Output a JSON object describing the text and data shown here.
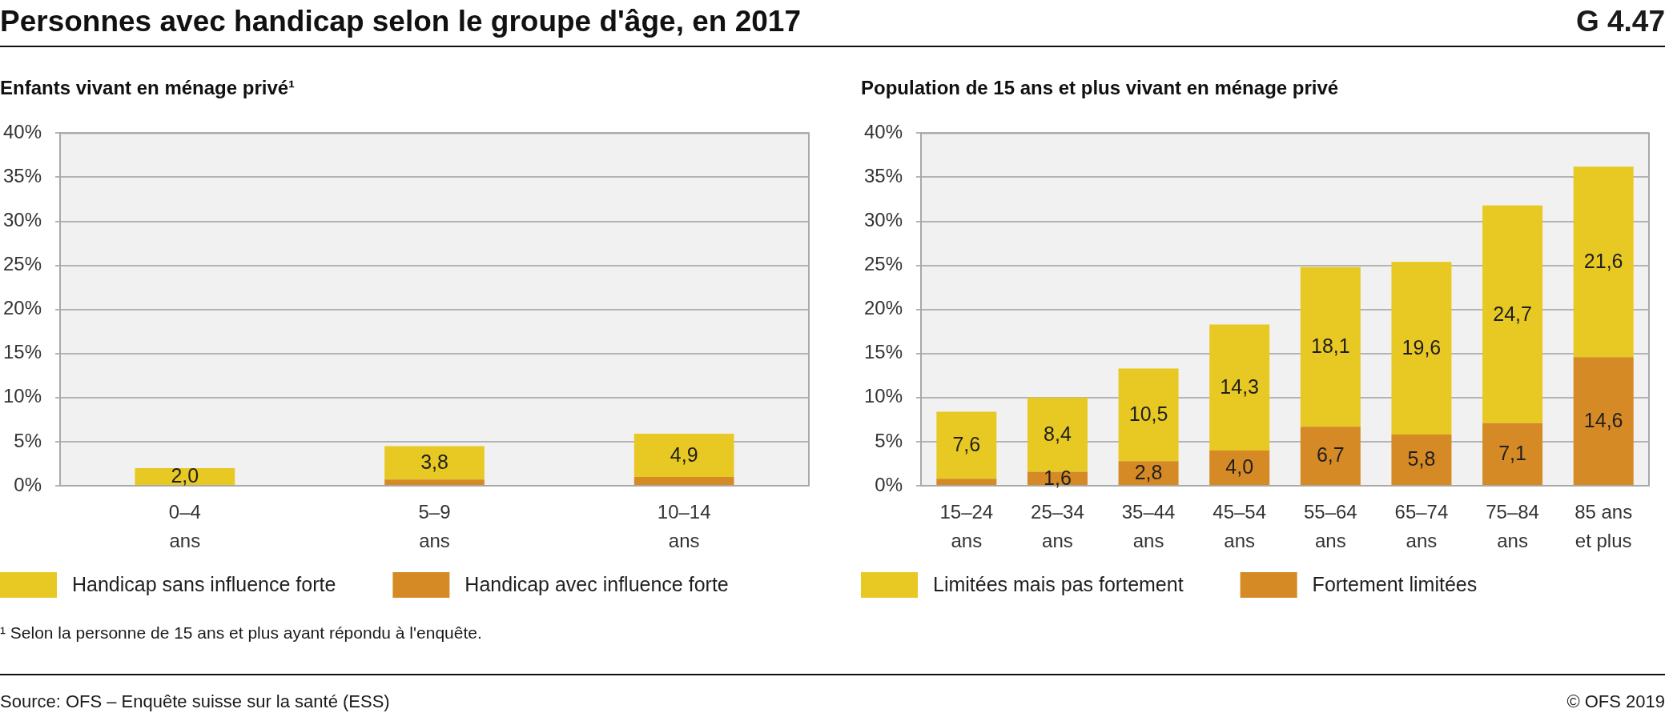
{
  "chart_data": [
    {
      "type": "bar",
      "title": "Personnes avec handicap selon le groupe d'âge, en 2017",
      "subtitle": "Enfants vivant en ménage privé¹",
      "categories": [
        "0–4 ans",
        "5–9 ans",
        "10–14 ans"
      ],
      "stacked": true,
      "series": [
        {
          "name": "Handicap avec influence forte",
          "color": "#d68a25",
          "values": [
            null,
            0.7,
            1.0
          ]
        },
        {
          "name": "Handicap sans influence forte",
          "color": "#e8c823",
          "values": [
            2.0,
            3.8,
            4.9
          ],
          "value_labels": [
            "2,0",
            "3,8",
            "4,9"
          ]
        }
      ],
      "ylim": [
        0,
        40
      ],
      "yticks": [
        {
          "value": 0,
          "label": "0%"
        },
        {
          "value": 5,
          "label": "5%"
        },
        {
          "value": 10,
          "label": "10%"
        },
        {
          "value": 15,
          "label": "15%"
        },
        {
          "value": 20,
          "label": "20%"
        },
        {
          "value": 25,
          "label": "25%"
        },
        {
          "value": 30,
          "label": "30%"
        },
        {
          "value": 35,
          "label": "35%"
        },
        {
          "value": 40,
          "label": "40%"
        }
      ],
      "grid": "y",
      "legend": "bottom left",
      "annotations": [
        "¹ Selon la personne de 15 ans et plus ayant répondu à l'enquête.",
        "Source: OFS – Enquête suisse sur la santé (ESS)"
      ]
    },
    {
      "type": "bar",
      "subtitle": "Population de 15 ans et plus vivant en ménage privé",
      "categories": [
        "15–24 ans",
        "25–34 ans",
        "35–44 ans",
        "45–54 ans",
        "55–64 ans",
        "65–74 ans",
        "75–84 ans",
        "85 ans et plus"
      ],
      "stacked": true,
      "series": [
        {
          "name": "Fortement limitées",
          "color": "#d68a25",
          "values": [
            0.8,
            1.6,
            2.8,
            4.0,
            6.7,
            5.8,
            7.1,
            14.6
          ],
          "value_labels": [
            null,
            "1,6",
            "2,8",
            "4,0",
            "6,7",
            "5,8",
            "7,1",
            "14,6"
          ]
        },
        {
          "name": "Limitées mais pas fortement",
          "color": "#e8c823",
          "values": [
            7.6,
            8.4,
            10.5,
            14.3,
            18.1,
            19.6,
            24.7,
            21.6
          ],
          "value_labels": [
            "7,6",
            "8,4",
            "10,5",
            "14,3",
            "18,1",
            "19,6",
            "24,7",
            "21,6"
          ]
        }
      ],
      "ylim": [
        0,
        40
      ],
      "yticks": [
        {
          "value": 0,
          "label": "0%"
        },
        {
          "value": 5,
          "label": "5%"
        },
        {
          "value": 10,
          "label": "10%"
        },
        {
          "value": 15,
          "label": "15%"
        },
        {
          "value": 20,
          "label": "20%"
        },
        {
          "value": 25,
          "label": "25%"
        },
        {
          "value": 30,
          "label": "30%"
        },
        {
          "value": 35,
          "label": "35%"
        },
        {
          "value": 40,
          "label": "40%"
        }
      ],
      "grid": "y",
      "legend": "bottom left",
      "annotations": [
        "G 4.47",
        "© OFS 2019"
      ]
    }
  ]
}
